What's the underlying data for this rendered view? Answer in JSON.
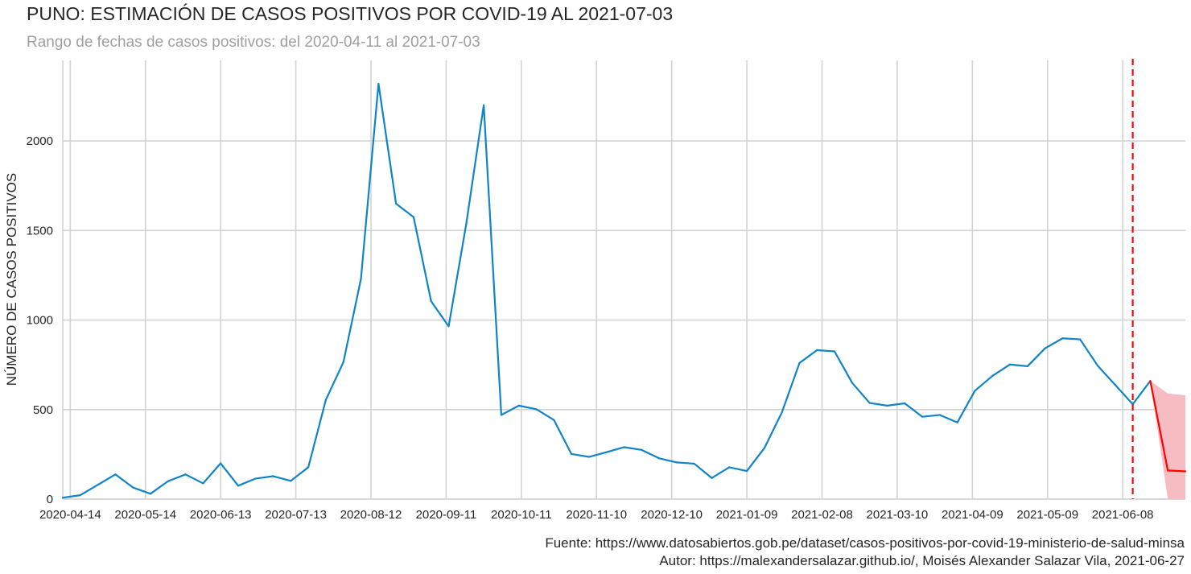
{
  "chart_data": {
    "type": "line",
    "title": "PUNO: ESTIMACIÓN DE CASOS POSITIVOS POR COVID-19 AL 2021-07-03",
    "subtitle": "Rango de fechas de casos positivos: del 2020-04-11 al 2021-07-03",
    "xlabel": "",
    "ylabel": "NÚMERO DE CASOS POSITIVOS",
    "x_type": "date",
    "xlim": [
      "2020-04-11",
      "2021-07-03"
    ],
    "ylim": [
      0,
      2450
    ],
    "xticks": [
      "2020-04-14",
      "2020-05-14",
      "2020-06-13",
      "2020-07-13",
      "2020-08-12",
      "2020-09-11",
      "2020-10-11",
      "2020-11-10",
      "2020-12-10",
      "2021-01-09",
      "2021-02-08",
      "2021-03-10",
      "2021-04-09",
      "2021-05-09",
      "2021-06-08"
    ],
    "yticks": [
      0,
      500,
      1000,
      1500,
      2000
    ],
    "grid": true,
    "forecast_start": "2021-06-12",
    "colors": {
      "observed": "#1084c9",
      "forecast": "#ff0000",
      "band": "#f7bcc2",
      "vline": "#e01010",
      "grid": "#d3d3d3"
    },
    "series": [
      {
        "kind": "observed",
        "x": [
          "2020-04-11",
          "2020-04-18",
          "2020-04-25",
          "2020-05-02",
          "2020-05-09",
          "2020-05-16",
          "2020-05-23",
          "2020-05-30",
          "2020-06-06",
          "2020-06-13",
          "2020-06-20",
          "2020-06-27",
          "2020-07-04",
          "2020-07-11",
          "2020-07-18",
          "2020-07-25",
          "2020-08-01",
          "2020-08-08",
          "2020-08-15",
          "2020-08-22",
          "2020-08-29",
          "2020-09-05",
          "2020-09-12",
          "2020-09-19",
          "2020-09-26",
          "2020-10-03",
          "2020-10-10",
          "2020-10-17",
          "2020-10-24",
          "2020-10-31",
          "2020-11-07",
          "2020-11-14",
          "2020-11-21",
          "2020-11-28",
          "2020-12-05",
          "2020-12-12",
          "2020-12-19",
          "2020-12-26",
          "2021-01-02",
          "2021-01-09",
          "2021-01-16",
          "2021-01-23",
          "2021-01-30",
          "2021-02-06",
          "2021-02-13",
          "2021-02-20",
          "2021-02-27",
          "2021-03-06",
          "2021-03-13",
          "2021-03-20",
          "2021-03-27",
          "2021-04-03",
          "2021-04-10",
          "2021-04-17",
          "2021-04-24",
          "2021-05-01",
          "2021-05-08",
          "2021-05-15",
          "2021-05-22",
          "2021-05-29",
          "2021-06-05",
          "2021-06-12",
          "2021-06-19"
        ],
        "y": [
          8,
          22,
          80,
          138,
          65,
          30,
          100,
          138,
          88,
          200,
          75,
          115,
          128,
          102,
          178,
          555,
          765,
          1230,
          2320,
          1650,
          1575,
          1105,
          965,
          1535,
          2200,
          470,
          522,
          502,
          442,
          252,
          236,
          262,
          290,
          275,
          228,
          205,
          198,
          118,
          178,
          157,
          285,
          485,
          760,
          832,
          825,
          650,
          537,
          522,
          535,
          460,
          470,
          428,
          605,
          688,
          752,
          742,
          842,
          898,
          892,
          745,
          638,
          530,
          660
        ]
      },
      {
        "kind": "forecast",
        "x": [
          "2021-06-19",
          "2021-06-26",
          "2021-07-03"
        ],
        "y": [
          660,
          160,
          155
        ],
        "lower": [
          660,
          0,
          0
        ],
        "upper": [
          660,
          590,
          580
        ]
      }
    ]
  },
  "footer": {
    "source": "Fuente: https://www.datosabiertos.gob.pe/dataset/casos-positivos-por-covid-19-ministerio-de-salud-minsa",
    "author": "Autor: https://malexandersalazar.github.io/, Moisés Alexander Salazar Vila, 2021-06-27"
  }
}
